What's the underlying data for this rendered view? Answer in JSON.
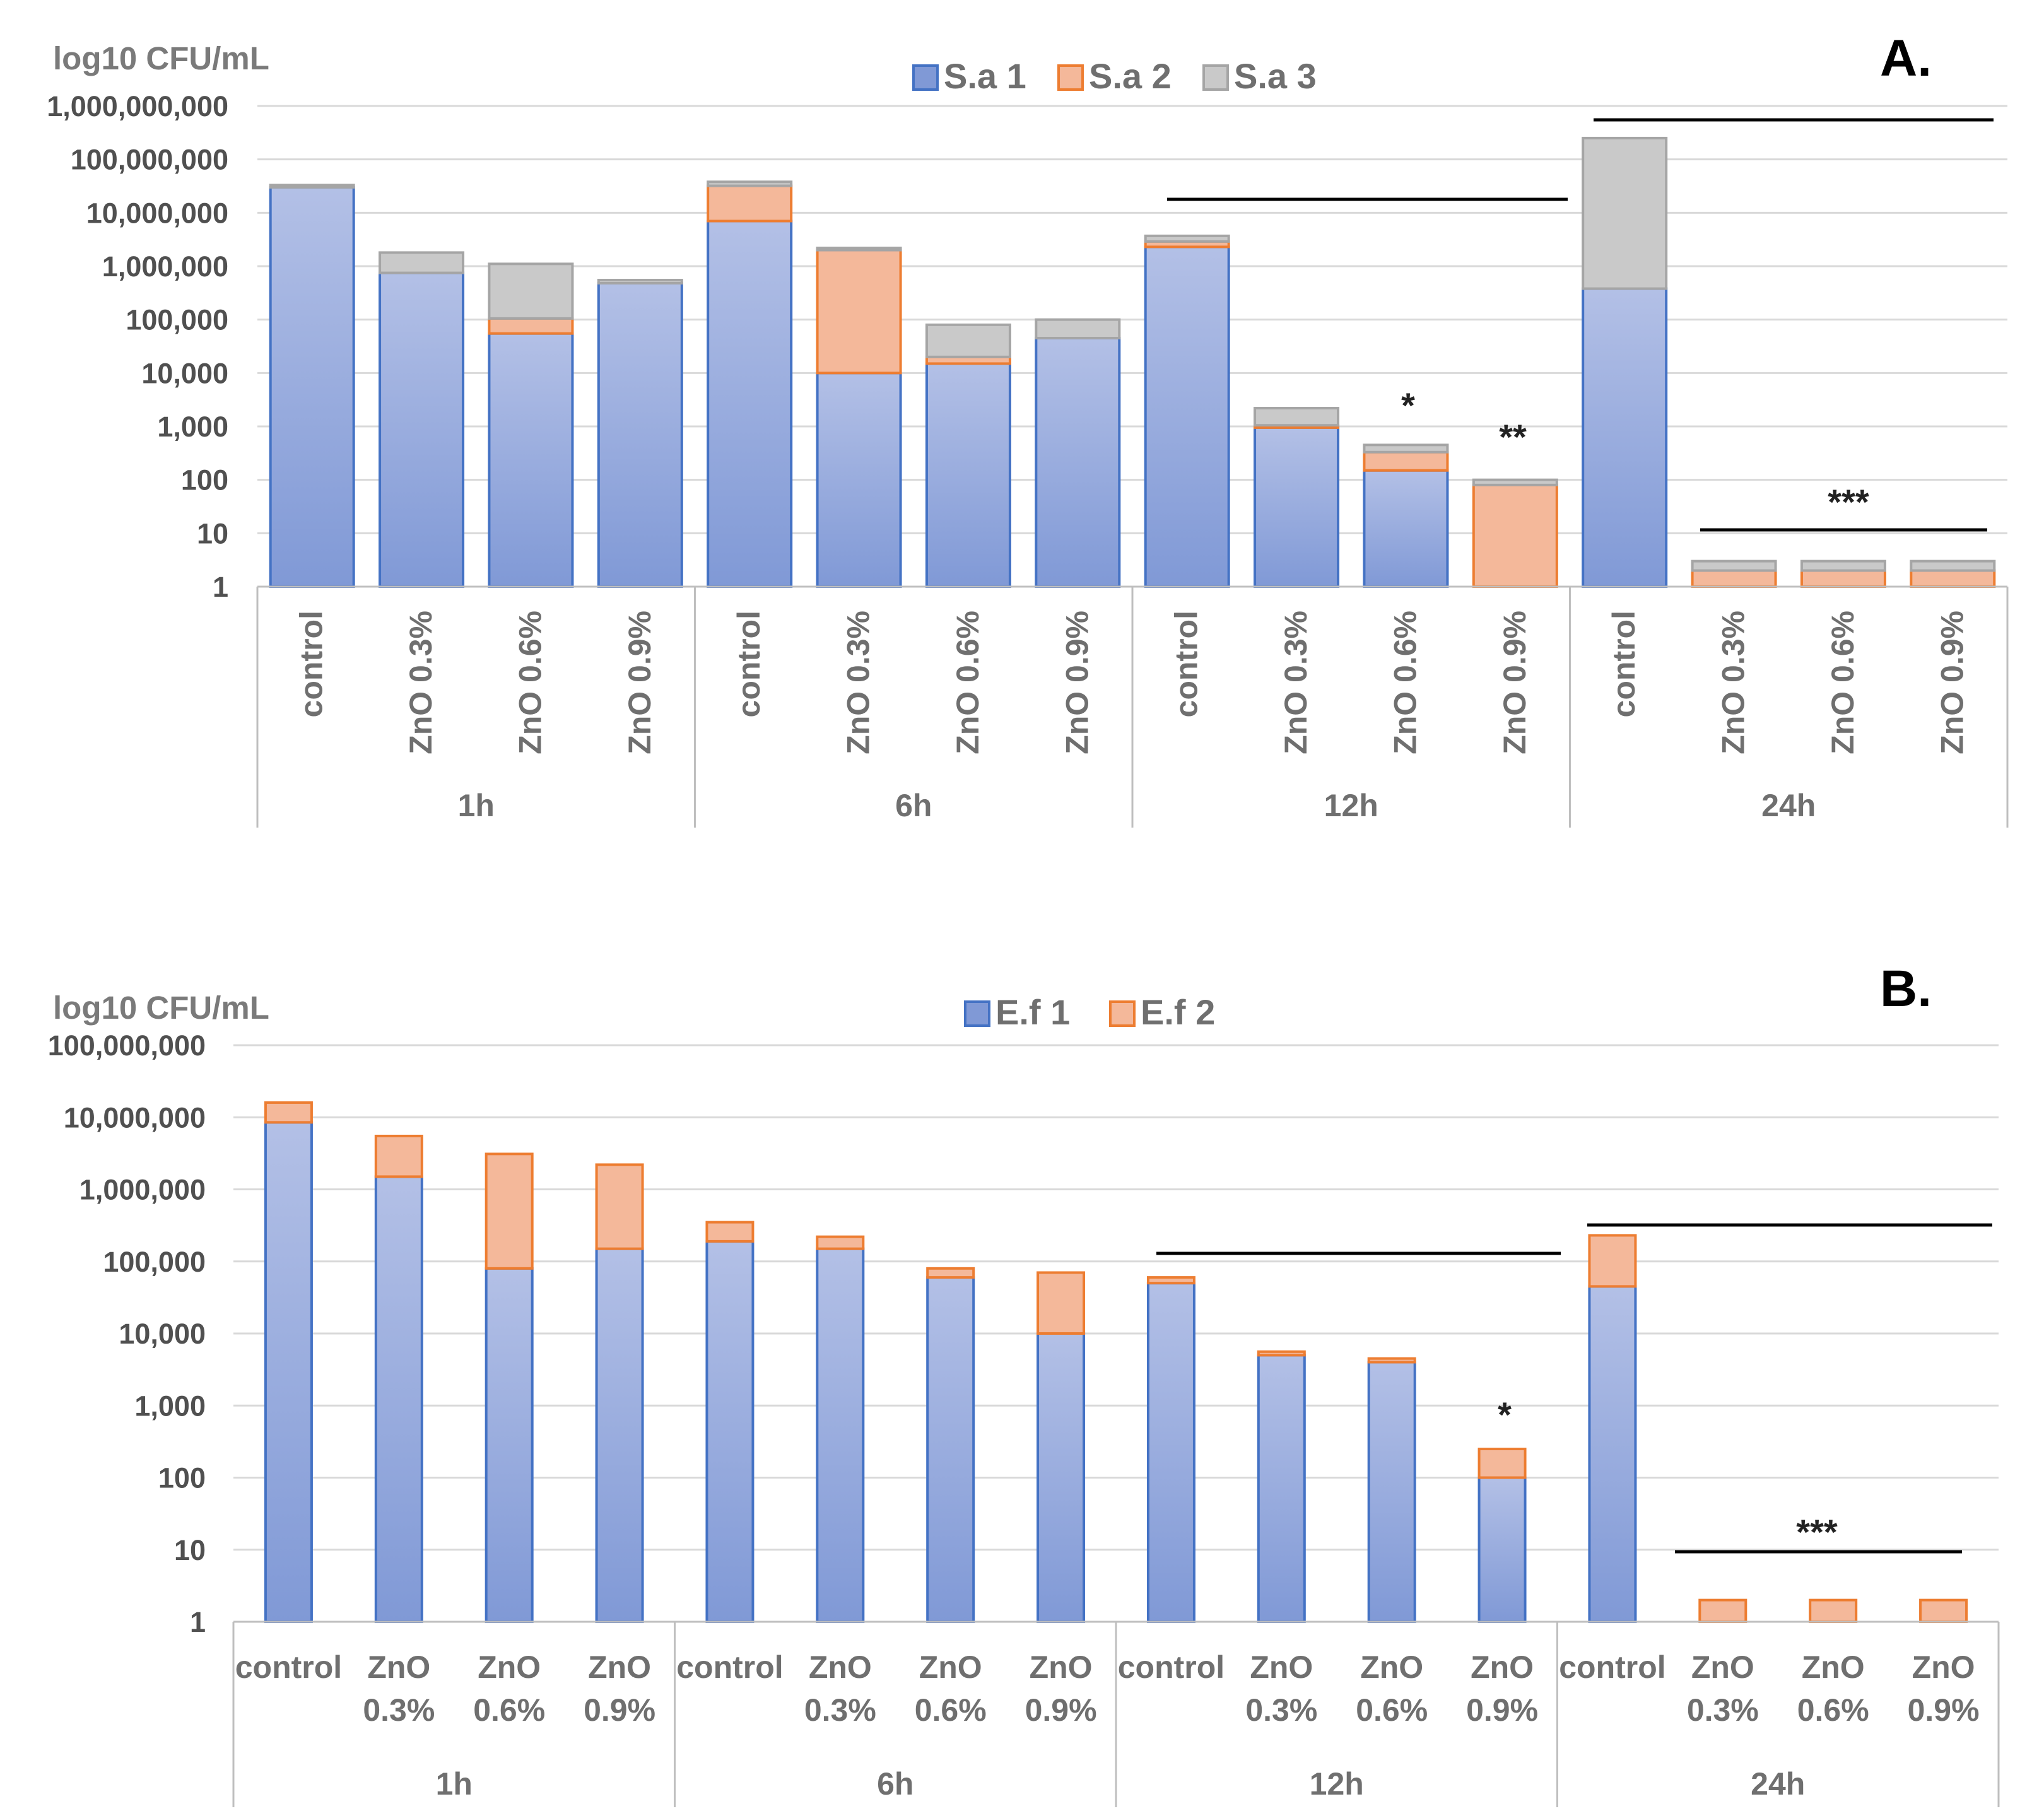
{
  "colors": {
    "series1_fill_top": "#b3c0e6",
    "series1_fill_bottom": "#8099d6",
    "series1_edge": "#4472c4",
    "series2_fill": "#f4b89a",
    "series2_edge": "#ed7d31",
    "series3_fill": "#c9c9c9",
    "series3_edge": "#a5a5a5",
    "grid": "#d9d9d9",
    "axis": "#bfbfbf"
  },
  "chart_data": [
    {
      "panel": "A.",
      "type": "bar",
      "stacked": true,
      "yscale": "log10",
      "ylabel": "log10 CFU/mL",
      "ylim": [
        1,
        1000000000
      ],
      "yticks": [
        "1",
        "10",
        "100",
        "1,000",
        "10,000",
        "100,000",
        "1,000,000",
        "10,000,000",
        "100,000,000",
        "1,000,000,000"
      ],
      "groups": [
        "1h",
        "6h",
        "12h",
        "24h"
      ],
      "categories": [
        "control",
        "ZnO 0.3%",
        "ZnO 0.6%",
        "ZnO 0.9%",
        "control",
        "ZnO 0.3%",
        "ZnO 0.6%",
        "ZnO 0.9%",
        "control",
        "ZnO 0.3%",
        "ZnO 0.6%",
        "ZnO 0.9%",
        "control",
        "ZnO 0.3%",
        "ZnO 0.6%",
        "ZnO 0.9%"
      ],
      "series": [
        {
          "name": "S.a 1",
          "values": [
            30000000,
            750000,
            55000,
            480000,
            7000000,
            10000,
            15000,
            45000,
            2300000,
            950,
            150,
            0,
            380000,
            0,
            0,
            0
          ]
        },
        {
          "name": "S.a 2",
          "values": [
            0,
            0,
            50000,
            0,
            25000000,
            1990000,
            5000,
            0,
            600000,
            100,
            180,
            80,
            0,
            2,
            2,
            2
          ]
        },
        {
          "name": "S.a 3",
          "values": [
            3000000,
            1050000,
            1000000,
            70000,
            6000000,
            200000,
            60000,
            55000,
            800000,
            1150,
            120,
            20,
            250000000,
            1,
            1,
            1
          ]
        }
      ],
      "legend": [
        "S.a 1",
        "S.a 2",
        "S.a 3"
      ],
      "legend_position": "top-center",
      "annotations": [
        "*",
        "**",
        "***"
      ]
    },
    {
      "panel": "B.",
      "type": "bar",
      "stacked": true,
      "yscale": "log10",
      "ylabel": "log10 CFU/mL",
      "ylim": [
        1,
        100000000
      ],
      "yticks": [
        "1",
        "10",
        "100",
        "1,000",
        "10,000",
        "100,000",
        "1,000,000",
        "10,000,000",
        "100,000,000"
      ],
      "groups": [
        "1h",
        "6h",
        "12h",
        "24h"
      ],
      "categories": [
        "control",
        "ZnO 0.3%",
        "ZnO 0.6%",
        "ZnO 0.9%",
        "control",
        "ZnO 0.3%",
        "ZnO 0.6%",
        "ZnO 0.9%",
        "control",
        "ZnO 0.3%",
        "ZnO 0.6%",
        "ZnO 0.9%",
        "control",
        "ZnO 0.3%",
        "ZnO 0.6%",
        "ZnO 0.9%"
      ],
      "series": [
        {
          "name": "E.f 1",
          "values": [
            8500000,
            1500000,
            80000,
            150000,
            190000,
            150000,
            60000,
            10000,
            50000,
            5000,
            4000,
            100,
            45000,
            0,
            0,
            0
          ]
        },
        {
          "name": "E.f 2",
          "values": [
            7500000,
            4000000,
            3020000,
            2050000,
            160000,
            70000,
            20000,
            60000,
            10000,
            600,
            500,
            150,
            185000,
            2,
            2,
            2
          ]
        }
      ],
      "legend": [
        "E.f 1",
        "E.f 2"
      ],
      "legend_position": "top-center",
      "annotations": [
        "*",
        "***"
      ]
    }
  ]
}
